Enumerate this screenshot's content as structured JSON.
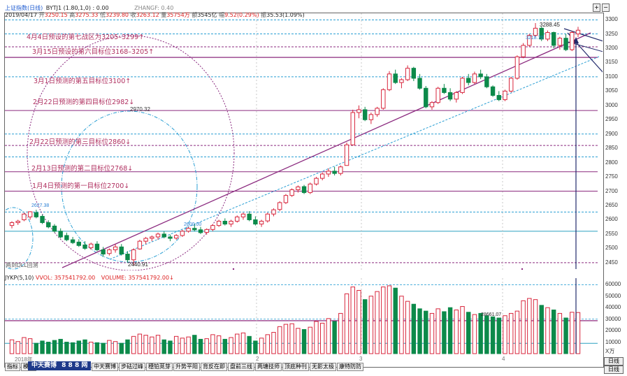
{
  "header": {
    "title": "上证指数(日线)",
    "indicator": "BYTJ1 (1.80,1,0)",
    "indicator_val": ": 0.00",
    "zhangf": "ZHANGF: 0.40",
    "date": "2019/04/17",
    "open_label": "开",
    "open": "3250.15",
    "high_label": "高",
    "high": "3275.33",
    "low_label": "低",
    "low": "3239.80",
    "close_label": "收",
    "close": "3263.12",
    "vol_label": "量",
    "vol": "35754万",
    "amount_label": "额",
    "amount": "3545亿",
    "chg_label": "幅",
    "chg": "9.52(0.29%)",
    "amp_label": "振",
    "amp": "35.53(1.09%)"
  },
  "annotations": [
    "4月4日预设的第七战区为3205–3299↑",
    "3月15日预设的第六目标位3168–3205↑",
    "3月1日预测的第五目标位3100↑",
    "2月22日预测的第四目标位2982↓",
    "2月22日预测的第三目标位2860↓",
    "2月13日预测的第二目标位2768↓",
    "1月4日预测的第一目标位2700↓"
  ],
  "price_labels": {
    "top": "3288.45",
    "upper_left": "2970.32",
    "left_peak": "2627.38",
    "bottom": "2440.91",
    "mid": "2600.00",
    "right_mark": "3218.70"
  },
  "chart_note": "两到DLL回测",
  "price_axis": [
    "3300",
    "3250",
    "3200",
    "3150",
    "3100",
    "3050",
    "3000",
    "2950",
    "2900",
    "2850",
    "2800",
    "2750",
    "2700",
    "2650",
    "2600",
    "2550",
    "2500",
    "2450"
  ],
  "vol_axis": [
    "60000",
    "50000",
    "40000",
    "30000",
    "20000",
    "10000",
    "X万"
  ],
  "vol_header": {
    "name": "JYKP(5,10)",
    "vvol": "VVOL: 357541792.00",
    "vol": "VOLUME: 357541792.00",
    "arrow": "↓"
  },
  "vol_mark": "28661.07",
  "month_labels": [
    "2018年",
    "2",
    "3",
    "4"
  ],
  "tabs": [
    "指标",
    "模版",
    "中天赛博",
    "步砝过峰",
    "穗铂莧芽",
    "升势平阳",
    "背反在即",
    "盘前三线",
    "两塘技师",
    "顶底种刊",
    "无影太极",
    "康特防防"
  ],
  "watermark": "中天赛博",
  "watermark2": "8 8 8 网",
  "corner_buttons": [
    "日线",
    "日线"
  ],
  "scroll_controls": [
    "+",
    "−"
  ],
  "chart_data": {
    "type": "candlestick",
    "title": "上证指数(日线)",
    "ylim": [
      2430,
      3310
    ],
    "candles": [
      [
        2580,
        2595,
        2570,
        2590
      ],
      [
        2590,
        2600,
        2582,
        2595
      ],
      [
        2600,
        2625,
        2595,
        2620
      ],
      [
        2610,
        2630,
        2600,
        2628
      ],
      [
        2625,
        2635,
        2605,
        2610
      ],
      [
        2612,
        2618,
        2585,
        2590
      ],
      [
        2590,
        2598,
        2570,
        2575
      ],
      [
        2578,
        2585,
        2555,
        2560
      ],
      [
        2560,
        2570,
        2535,
        2540
      ],
      [
        2545,
        2555,
        2525,
        2530
      ],
      [
        2530,
        2540,
        2515,
        2520
      ],
      [
        2522,
        2532,
        2505,
        2510
      ],
      [
        2512,
        2525,
        2495,
        2500
      ],
      [
        2502,
        2520,
        2495,
        2515
      ],
      [
        2515,
        2525,
        2490,
        2495
      ],
      [
        2495,
        2505,
        2470,
        2480
      ],
      [
        2482,
        2500,
        2475,
        2495
      ],
      [
        2495,
        2515,
        2485,
        2505
      ],
      [
        2505,
        2515,
        2475,
        2480
      ],
      [
        2480,
        2490,
        2450,
        2460
      ],
      [
        2460,
        2500,
        2440,
        2495
      ],
      [
        2498,
        2530,
        2495,
        2525
      ],
      [
        2525,
        2540,
        2515,
        2535
      ],
      [
        2535,
        2545,
        2525,
        2540
      ],
      [
        2540,
        2555,
        2530,
        2550
      ],
      [
        2550,
        2560,
        2535,
        2540
      ],
      [
        2540,
        2548,
        2525,
        2535
      ],
      [
        2536,
        2550,
        2530,
        2545
      ],
      [
        2545,
        2565,
        2540,
        2560
      ],
      [
        2560,
        2575,
        2555,
        2570
      ],
      [
        2570,
        2585,
        2560,
        2565
      ],
      [
        2565,
        2575,
        2550,
        2555
      ],
      [
        2556,
        2570,
        2548,
        2566
      ],
      [
        2566,
        2585,
        2560,
        2580
      ],
      [
        2580,
        2600,
        2575,
        2595
      ],
      [
        2595,
        2605,
        2580,
        2585
      ],
      [
        2585,
        2600,
        2575,
        2595
      ],
      [
        2595,
        2615,
        2590,
        2610
      ],
      [
        2610,
        2625,
        2600,
        2620
      ],
      [
        2620,
        2630,
        2595,
        2600
      ],
      [
        2600,
        2612,
        2580,
        2585
      ],
      [
        2585,
        2600,
        2575,
        2595
      ],
      [
        2596,
        2625,
        2590,
        2620
      ],
      [
        2620,
        2640,
        2612,
        2635
      ],
      [
        2636,
        2665,
        2630,
        2660
      ],
      [
        2660,
        2690,
        2655,
        2685
      ],
      [
        2685,
        2710,
        2680,
        2705
      ],
      [
        2705,
        2720,
        2695,
        2715
      ],
      [
        2716,
        2722,
        2690,
        2695
      ],
      [
        2695,
        2730,
        2690,
        2725
      ],
      [
        2725,
        2750,
        2720,
        2745
      ],
      [
        2745,
        2765,
        2738,
        2760
      ],
      [
        2760,
        2780,
        2750,
        2770
      ],
      [
        2770,
        2785,
        2755,
        2762
      ],
      [
        2762,
        2790,
        2755,
        2785
      ],
      [
        2790,
        2870,
        2790,
        2862
      ],
      [
        2862,
        2985,
        2860,
        2975
      ],
      [
        2975,
        3000,
        2955,
        2985
      ],
      [
        2985,
        2995,
        2945,
        2950
      ],
      [
        2950,
        2975,
        2935,
        2968
      ],
      [
        2968,
        2995,
        2960,
        2990
      ],
      [
        2990,
        3060,
        2985,
        3055
      ],
      [
        3055,
        3120,
        3050,
        3110
      ],
      [
        3110,
        3125,
        3075,
        3080
      ],
      [
        3080,
        3095,
        3060,
        3090
      ],
      [
        3090,
        3140,
        3085,
        3130
      ],
      [
        3130,
        3135,
        3085,
        3095
      ],
      [
        3095,
        3110,
        3055,
        3060
      ],
      [
        3060,
        3068,
        2990,
        2995
      ],
      [
        2995,
        3015,
        2985,
        3010
      ],
      [
        3010,
        3065,
        3005,
        3060
      ],
      [
        3060,
        3075,
        3040,
        3045
      ],
      [
        3045,
        3060,
        3015,
        3022
      ],
      [
        3022,
        3050,
        3010,
        3045
      ],
      [
        3045,
        3100,
        3040,
        3095
      ],
      [
        3095,
        3110,
        3070,
        3080
      ],
      [
        3080,
        3118,
        3075,
        3110
      ],
      [
        3110,
        3125,
        3092,
        3100
      ],
      [
        3100,
        3110,
        3060,
        3065
      ],
      [
        3065,
        3070,
        3030,
        3035
      ],
      [
        3035,
        3050,
        3015,
        3020
      ],
      [
        3020,
        3055,
        3015,
        3050
      ],
      [
        3050,
        3100,
        3045,
        3095
      ],
      [
        3095,
        3175,
        3090,
        3170
      ],
      [
        3170,
        3218,
        3165,
        3210
      ],
      [
        3210,
        3250,
        3205,
        3245
      ],
      [
        3245,
        3288,
        3240,
        3270
      ],
      [
        3270,
        3275,
        3225,
        3232
      ],
      [
        3232,
        3262,
        3225,
        3255
      ],
      [
        3255,
        3258,
        3200,
        3210
      ],
      [
        3210,
        3240,
        3195,
        3235
      ],
      [
        3235,
        3250,
        3190,
        3195
      ],
      [
        3195,
        3260,
        3190,
        3255
      ],
      [
        3250,
        3275,
        3239,
        3263
      ]
    ],
    "volumes": [
      12000,
      10500,
      14000,
      13000,
      9000,
      11000,
      10000,
      11500,
      12500,
      10000,
      9500,
      11000,
      12000,
      10000,
      9500,
      9000,
      11500,
      10500,
      9000,
      12000,
      15000,
      17000,
      16000,
      14500,
      16000,
      12000,
      11000,
      15000,
      13500,
      14500,
      16000,
      12500,
      13000,
      16500,
      15500,
      12500,
      14000,
      17000,
      18000,
      15000,
      11000,
      13500,
      16500,
      18500,
      23500,
      25500,
      26000,
      22000,
      21000,
      23000,
      28000,
      26500,
      30500,
      28000,
      35000,
      52000,
      58000,
      55000,
      47000,
      50000,
      54000,
      58000,
      59000,
      57000,
      50000,
      45500,
      43000,
      39000,
      37000,
      35000,
      39000,
      36500,
      40000,
      38000,
      41000,
      36000,
      34000,
      35000,
      33000,
      32000,
      31000,
      33000,
      35000,
      37000,
      46000,
      48000,
      47000,
      42000,
      40000,
      38000,
      35000,
      31000,
      36000,
      35754
    ],
    "horizontal_levels": [
      3299,
      3250,
      3205,
      3168,
      3100,
      2982,
      2900,
      2860,
      2820,
      2768,
      2700,
      2627,
      2560,
      2450
    ]
  }
}
